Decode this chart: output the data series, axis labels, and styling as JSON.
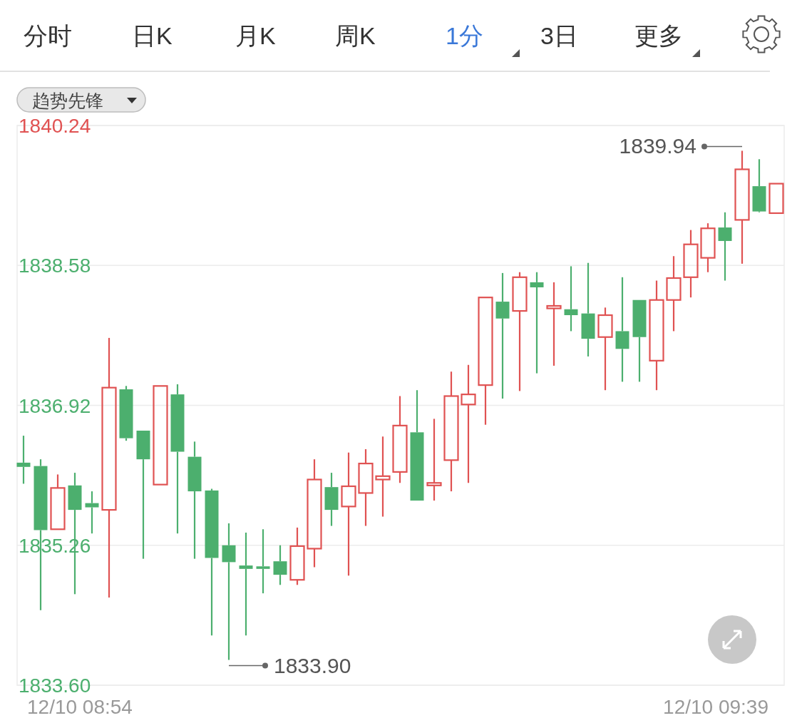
{
  "chart_data": {
    "type": "candlestick",
    "categories": [
      null,
      null,
      null,
      null,
      null,
      null,
      null,
      null,
      null,
      null,
      null,
      null,
      null,
      null,
      null,
      null,
      null,
      null,
      null,
      null,
      null,
      null,
      null,
      null,
      null,
      null,
      null,
      null,
      null,
      null,
      null,
      null,
      null,
      null,
      null,
      null,
      null,
      null,
      null,
      null,
      null,
      null,
      null,
      null,
      null
    ],
    "ohlc": [
      [
        1836.24,
        1836.56,
        1835.99,
        1836.19
      ],
      [
        1836.2,
        1836.28,
        1834.49,
        1835.44
      ],
      [
        1835.45,
        1836.1,
        1835.45,
        1835.94
      ],
      [
        1835.97,
        1836.12,
        1834.68,
        1835.68
      ],
      [
        1835.76,
        1835.9,
        1835.4,
        1835.71
      ],
      [
        1835.68,
        1837.72,
        1834.64,
        1837.13
      ],
      [
        1837.11,
        1837.15,
        1836.5,
        1836.53
      ],
      [
        1836.62,
        1836.62,
        1835.1,
        1836.28
      ],
      [
        1835.98,
        1837.15,
        1835.98,
        1837.15
      ],
      [
        1837.05,
        1837.17,
        1835.4,
        1836.37
      ],
      [
        1836.31,
        1836.49,
        1835.1,
        1835.9
      ],
      [
        1835.91,
        1835.93,
        1834.19,
        1835.11
      ],
      [
        1835.26,
        1835.52,
        1833.9,
        1835.06
      ],
      [
        1835.02,
        1835.41,
        1834.19,
        1834.98
      ],
      [
        1835.01,
        1835.45,
        1834.69,
        1834.98
      ],
      [
        1835.07,
        1835.26,
        1834.79,
        1834.91
      ],
      [
        1834.85,
        1835.47,
        1834.79,
        1835.25
      ],
      [
        1835.22,
        1836.28,
        1835.0,
        1836.04
      ],
      [
        1835.95,
        1836.12,
        1835.49,
        1835.68
      ],
      [
        1835.72,
        1836.36,
        1834.9,
        1835.96
      ],
      [
        1835.88,
        1836.4,
        1835.49,
        1836.23
      ],
      [
        1836.04,
        1836.55,
        1835.6,
        1836.08
      ],
      [
        1836.13,
        1837.03,
        1836.0,
        1836.68
      ],
      [
        1836.6,
        1837.1,
        1835.79,
        1835.79
      ],
      [
        1835.97,
        1836.76,
        1835.79,
        1836.0
      ],
      [
        1836.27,
        1837.32,
        1835.9,
        1837.03
      ],
      [
        1836.93,
        1837.4,
        1836.0,
        1837.05
      ],
      [
        1837.16,
        1838.2,
        1836.69,
        1838.2
      ],
      [
        1838.15,
        1838.49,
        1837.0,
        1837.95
      ],
      [
        1838.04,
        1838.5,
        1837.09,
        1838.44
      ],
      [
        1838.38,
        1838.5,
        1837.3,
        1838.32
      ],
      [
        1838.07,
        1838.38,
        1837.39,
        1838.1
      ],
      [
        1838.06,
        1838.57,
        1837.8,
        1837.99
      ],
      [
        1838.01,
        1838.61,
        1837.5,
        1837.71
      ],
      [
        1837.73,
        1838.08,
        1837.1,
        1837.99
      ],
      [
        1837.8,
        1838.44,
        1837.2,
        1837.59
      ],
      [
        1838.17,
        1838.17,
        1837.2,
        1837.73
      ],
      [
        1837.45,
        1838.4,
        1837.1,
        1838.17
      ],
      [
        1838.17,
        1838.69,
        1837.8,
        1838.43
      ],
      [
        1838.44,
        1839.0,
        1838.2,
        1838.83
      ],
      [
        1838.67,
        1839.08,
        1838.5,
        1839.02
      ],
      [
        1839.03,
        1839.21,
        1838.4,
        1838.87
      ],
      [
        1839.12,
        1839.94,
        1838.6,
        1839.72
      ],
      [
        1839.52,
        1839.84,
        1839.21,
        1839.22
      ],
      [
        1839.2,
        1839.55,
        1839.2,
        1839.55
      ]
    ],
    "colors": [
      "#4caf6e",
      "#4caf6e",
      "#e05252",
      "#4caf6e",
      "#4caf6e",
      "#e05252",
      "#4caf6e",
      "#4caf6e",
      "#e05252",
      "#4caf6e",
      "#4caf6e",
      "#4caf6e",
      "#4caf6e",
      "#4caf6e",
      "#4caf6e",
      "#4caf6e",
      "#e05252",
      "#e05252",
      "#4caf6e",
      "#e05252",
      "#e05252",
      "#e05252",
      "#e05252",
      "#4caf6e",
      "#e05252",
      "#e05252",
      "#e05252",
      "#e05252",
      "#4caf6e",
      "#e05252",
      "#4caf6e",
      "#e05252",
      "#4caf6e",
      "#4caf6e",
      "#e05252",
      "#4caf6e",
      "#4caf6e",
      "#e05252",
      "#e05252",
      "#e05252",
      "#e05252",
      "#4caf6e",
      "#e05252",
      "#4caf6e",
      "#e05252"
    ],
    "ylim": [
      1833.6,
      1840.24
    ],
    "yticks": [
      {
        "value": 1833.6,
        "label": "1833.60"
      },
      1835.26,
      1836.92,
      1838.58,
      1840.24
    ],
    "grid": "y",
    "annotations": [
      "分时",
      "日K",
      "月K",
      "周K",
      "1分",
      "3日",
      "更多",
      "趋势先锋",
      "1839.94",
      "1833.90",
      "12/10 08:54",
      "12/10 09:39"
    ]
  }
}
